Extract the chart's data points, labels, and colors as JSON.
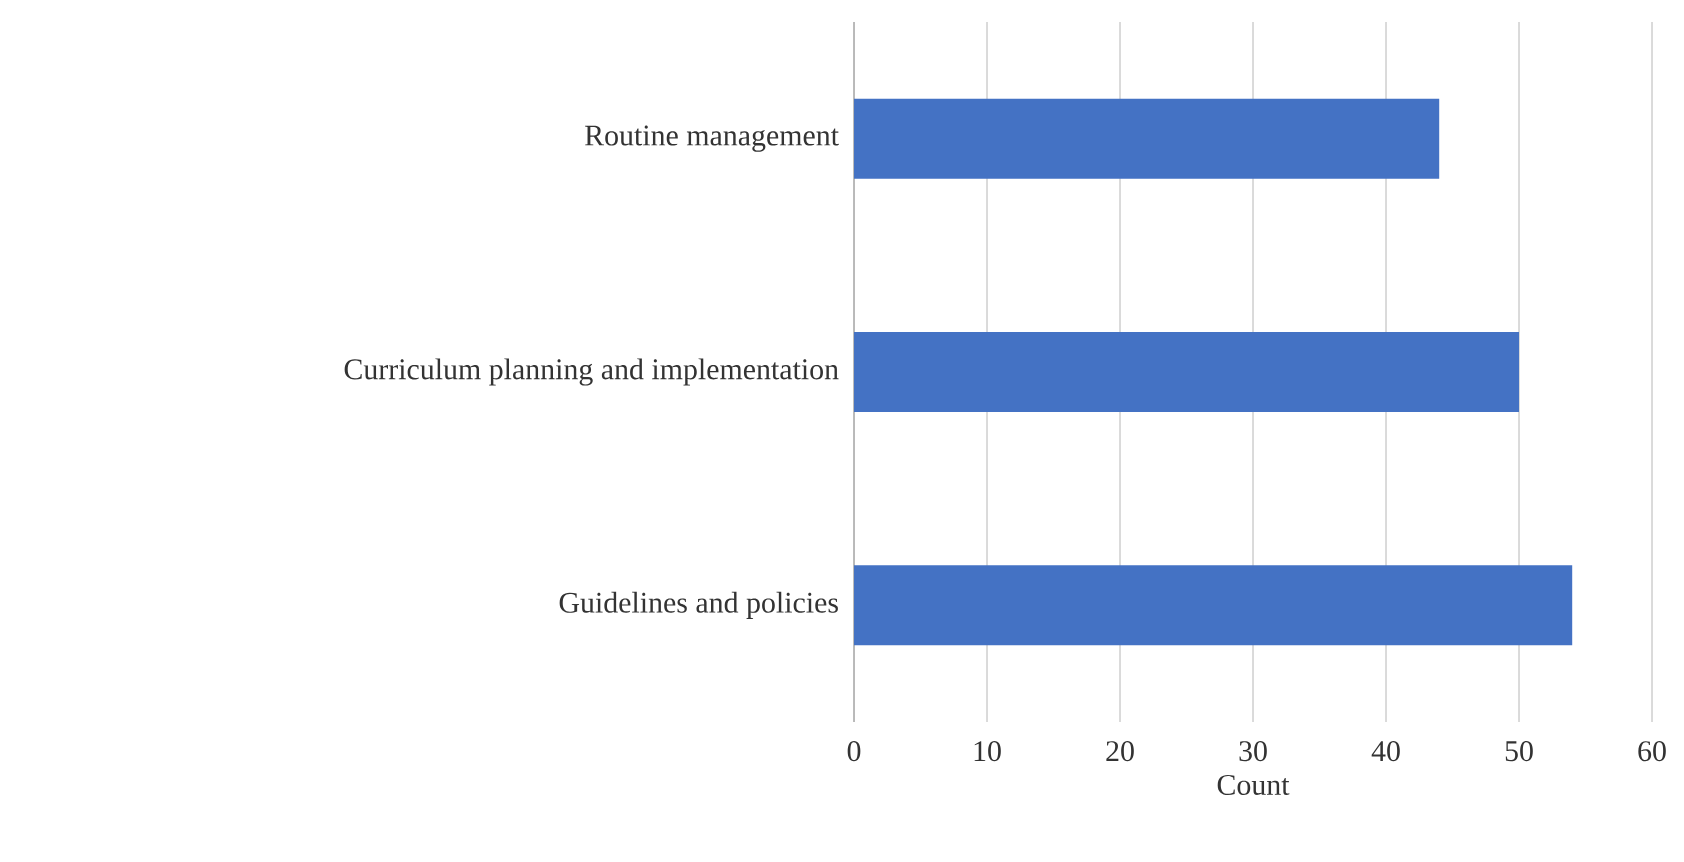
{
  "chart_data": {
    "type": "bar",
    "orientation": "horizontal",
    "categories": [
      "Routine management",
      "Curriculum planning and implementation",
      "Guidelines and policies"
    ],
    "values": [
      44,
      50,
      54
    ],
    "color": "#4472c4",
    "xlabel": "Count",
    "xlim": [
      0,
      60
    ],
    "xticks": [
      0,
      10,
      20,
      30,
      40,
      50,
      60
    ],
    "grid": "x"
  }
}
